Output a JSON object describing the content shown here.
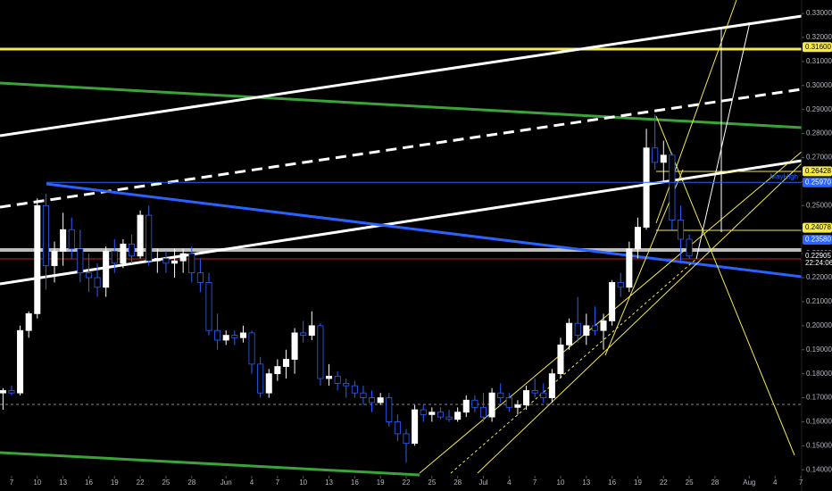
{
  "chart_data": {
    "type": "candlestick",
    "xlim": [
      -1.35,
      92.1
    ],
    "ylim": [
      0.1375,
      0.3356
    ],
    "xticks": [
      {
        "value": 0,
        "label": "7"
      },
      {
        "value": 3,
        "label": "10"
      },
      {
        "value": 6,
        "label": "13"
      },
      {
        "value": 9,
        "label": "16"
      },
      {
        "value": 12,
        "label": "19"
      },
      {
        "value": 15,
        "label": "22"
      },
      {
        "value": 18,
        "label": "25"
      },
      {
        "value": 21,
        "label": "28"
      },
      {
        "value": 25,
        "label": "Jun"
      },
      {
        "value": 28,
        "label": "4"
      },
      {
        "value": 31,
        "label": "7"
      },
      {
        "value": 34,
        "label": "10"
      },
      {
        "value": 37,
        "label": "13"
      },
      {
        "value": 40,
        "label": "16"
      },
      {
        "value": 43,
        "label": "19"
      },
      {
        "value": 46,
        "label": "22"
      },
      {
        "value": 49,
        "label": "25"
      },
      {
        "value": 52,
        "label": "28"
      },
      {
        "value": 55,
        "label": "Jul"
      },
      {
        "value": 58,
        "label": "4"
      },
      {
        "value": 61,
        "label": "7"
      },
      {
        "value": 64,
        "label": "10"
      },
      {
        "value": 67,
        "label": "13"
      },
      {
        "value": 70,
        "label": "16"
      },
      {
        "value": 73,
        "label": "19"
      },
      {
        "value": 76,
        "label": "22"
      },
      {
        "value": 79,
        "label": "25"
      },
      {
        "value": 82,
        "label": "28"
      },
      {
        "value": 86,
        "label": "Aug"
      },
      {
        "value": 89,
        "label": "4"
      },
      {
        "value": 92,
        "label": "7"
      }
    ],
    "yticks": [
      {
        "value": 0.33,
        "label": "0.33000"
      },
      {
        "value": 0.32,
        "label": "0.32000"
      },
      {
        "value": 0.31,
        "label": "0.31000"
      },
      {
        "value": 0.3,
        "label": "0.30000"
      },
      {
        "value": 0.29,
        "label": "0.29000"
      },
      {
        "value": 0.28,
        "label": "0.28000"
      },
      {
        "value": 0.27,
        "label": "0.27000"
      },
      {
        "value": 0.26,
        "label": "0.26000"
      },
      {
        "value": 0.25,
        "label": "0.25000"
      },
      {
        "value": 0.24,
        "label": "0.24000"
      },
      {
        "value": 0.23,
        "label": "0.23000"
      },
      {
        "value": 0.22,
        "label": "0.22000"
      },
      {
        "value": 0.21,
        "label": "0.21000"
      },
      {
        "value": 0.2,
        "label": "0.20000"
      },
      {
        "value": 0.19,
        "label": "0.19000"
      },
      {
        "value": 0.18,
        "label": "0.18000"
      },
      {
        "value": 0.17,
        "label": "0.17000"
      },
      {
        "value": 0.16,
        "label": "0.16000"
      },
      {
        "value": 0.15,
        "label": "0.15000"
      },
      {
        "value": 0.14,
        "label": "0.14000"
      }
    ],
    "up_color": "#ffffff",
    "down_color": "#000000",
    "down_edge": "#2962ff",
    "x": [
      -1,
      0,
      1,
      2,
      3,
      4,
      5,
      6,
      7,
      8,
      9,
      10,
      11,
      12,
      13,
      14,
      15,
      16,
      17,
      18,
      19,
      20,
      21,
      22,
      23,
      24,
      25,
      26,
      27,
      28,
      29,
      30,
      31,
      32,
      33,
      34,
      35,
      36,
      37,
      38,
      39,
      40,
      41,
      42,
      43,
      44,
      45,
      46,
      47,
      48,
      49,
      50,
      51,
      52,
      53,
      54,
      55,
      56,
      57,
      58,
      59,
      60,
      61,
      62,
      63,
      64,
      65,
      66,
      67,
      68,
      69,
      70,
      71,
      72,
      73,
      74,
      75,
      76,
      77,
      78,
      79
    ],
    "open": [
      0.172,
      0.173,
      0.172,
      0.198,
      0.205,
      0.25,
      0.225,
      0.231,
      0.24,
      0.232,
      0.222,
      0.22,
      0.216,
      0.231,
      0.226,
      0.234,
      0.229,
      0.246,
      0.227,
      0.228,
      0.226,
      0.227,
      0.23,
      0.222,
      0.218,
      0.198,
      0.194,
      0.196,
      0.195,
      0.197,
      0.184,
      0.172,
      0.18,
      0.183,
      0.186,
      0.197,
      0.196,
      0.2,
      0.178,
      0.179,
      0.176,
      0.175,
      0.172,
      0.17,
      0.168,
      0.17,
      0.16,
      0.155,
      0.151,
      0.165,
      0.163,
      0.164,
      0.162,
      0.161,
      0.164,
      0.169,
      0.166,
      0.162,
      0.172,
      0.17,
      0.166,
      0.167,
      0.173,
      0.172,
      0.17,
      0.18,
      0.192,
      0.201,
      0.196,
      0.2,
      0.198,
      0.202,
      0.218,
      0.216,
      0.232,
      0.241,
      0.274,
      0.268,
      0.271,
      0.244,
      0.236
    ],
    "high": [
      0.174,
      0.175,
      0.2,
      0.206,
      0.253,
      0.255,
      0.235,
      0.247,
      0.245,
      0.24,
      0.23,
      0.226,
      0.233,
      0.236,
      0.236,
      0.238,
      0.248,
      0.25,
      0.232,
      0.231,
      0.232,
      0.232,
      0.233,
      0.228,
      0.222,
      0.205,
      0.198,
      0.198,
      0.2,
      0.198,
      0.187,
      0.182,
      0.186,
      0.19,
      0.199,
      0.202,
      0.206,
      0.201,
      0.184,
      0.181,
      0.178,
      0.177,
      0.175,
      0.173,
      0.172,
      0.172,
      0.163,
      0.157,
      0.167,
      0.167,
      0.166,
      0.166,
      0.165,
      0.166,
      0.171,
      0.171,
      0.172,
      0.174,
      0.176,
      0.172,
      0.169,
      0.175,
      0.178,
      0.176,
      0.182,
      0.195,
      0.203,
      0.212,
      0.205,
      0.208,
      0.205,
      0.219,
      0.222,
      0.235,
      0.245,
      0.282,
      0.288,
      0.277,
      0.272,
      0.25,
      0.238
    ],
    "low": [
      0.165,
      0.171,
      0.171,
      0.195,
      0.203,
      0.215,
      0.218,
      0.225,
      0.228,
      0.218,
      0.214,
      0.212,
      0.212,
      0.222,
      0.224,
      0.226,
      0.228,
      0.225,
      0.222,
      0.222,
      0.22,
      0.222,
      0.218,
      0.214,
      0.196,
      0.19,
      0.192,
      0.192,
      0.193,
      0.18,
      0.17,
      0.17,
      0.177,
      0.178,
      0.18,
      0.193,
      0.194,
      0.175,
      0.175,
      0.173,
      0.17,
      0.17,
      0.167,
      0.164,
      0.167,
      0.158,
      0.152,
      0.143,
      0.15,
      0.16,
      0.16,
      0.161,
      0.16,
      0.16,
      0.162,
      0.164,
      0.16,
      0.16,
      0.168,
      0.164,
      0.163,
      0.165,
      0.17,
      0.168,
      0.168,
      0.178,
      0.19,
      0.193,
      0.192,
      0.196,
      0.19,
      0.2,
      0.212,
      0.214,
      0.228,
      0.24,
      0.265,
      0.26,
      0.24,
      0.226,
      0.228
    ],
    "close": [
      0.173,
      0.172,
      0.198,
      0.205,
      0.25,
      0.225,
      0.231,
      0.24,
      0.232,
      0.222,
      0.22,
      0.216,
      0.231,
      0.226,
      0.234,
      0.229,
      0.246,
      0.227,
      0.228,
      0.226,
      0.227,
      0.23,
      0.222,
      0.218,
      0.198,
      0.194,
      0.196,
      0.195,
      0.197,
      0.184,
      0.172,
      0.18,
      0.183,
      0.186,
      0.197,
      0.196,
      0.2,
      0.178,
      0.179,
      0.176,
      0.175,
      0.172,
      0.17,
      0.168,
      0.17,
      0.16,
      0.155,
      0.151,
      0.165,
      0.163,
      0.164,
      0.162,
      0.161,
      0.164,
      0.169,
      0.166,
      0.162,
      0.172,
      0.17,
      0.166,
      0.167,
      0.173,
      0.172,
      0.17,
      0.18,
      0.192,
      0.201,
      0.196,
      0.2,
      0.198,
      0.202,
      0.218,
      0.216,
      0.232,
      0.241,
      0.274,
      0.268,
      0.271,
      0.244,
      0.236,
      0.229
    ],
    "price_labels": [
      {
        "value": 0.316,
        "label": "0.31600",
        "color": "#f5e94b",
        "text_color": "#000000"
      },
      {
        "value": 0.26428,
        "label": "0.26428",
        "color": "#f5e94b",
        "text_color": "#000000"
      },
      {
        "value": 0.2597,
        "label": "0.25970",
        "color": "#2962ff",
        "text_color": "#ffffff",
        "note": "MayHigh"
      },
      {
        "value": 0.24078,
        "label": "0.24078",
        "color": "#f5e94b",
        "text_color": "#000000"
      },
      {
        "value": 0.2358,
        "label": "0.23580",
        "color": "#2962ff",
        "text_color": "#ffffff"
      },
      {
        "value": 0.22905,
        "label": "0.22905",
        "color": "#000000",
        "text_color": "#ffffff",
        "note": "22:24:06"
      }
    ]
  }
}
